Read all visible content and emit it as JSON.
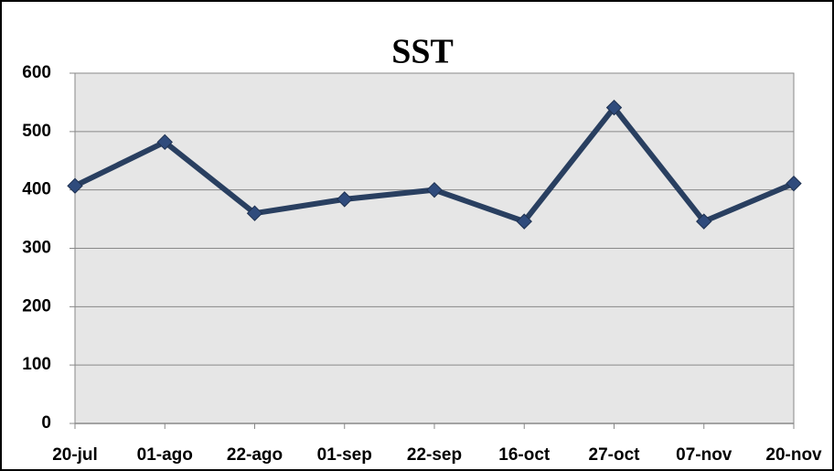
{
  "chart_data": {
    "type": "line",
    "title": "SST",
    "categories": [
      "20-jul",
      "01-ago",
      "22-ago",
      "01-sep",
      "22-sep",
      "16-oct",
      "27-oct",
      "07-nov",
      "20-nov"
    ],
    "series": [
      {
        "name": "SST",
        "color": "#293f60",
        "values": [
          407,
          482,
          360,
          384,
          400,
          346,
          541,
          346,
          411
        ]
      }
    ],
    "ylim": [
      0,
      600
    ],
    "yticks": [
      0,
      100,
      200,
      300,
      400,
      500,
      600
    ],
    "grid": true
  }
}
